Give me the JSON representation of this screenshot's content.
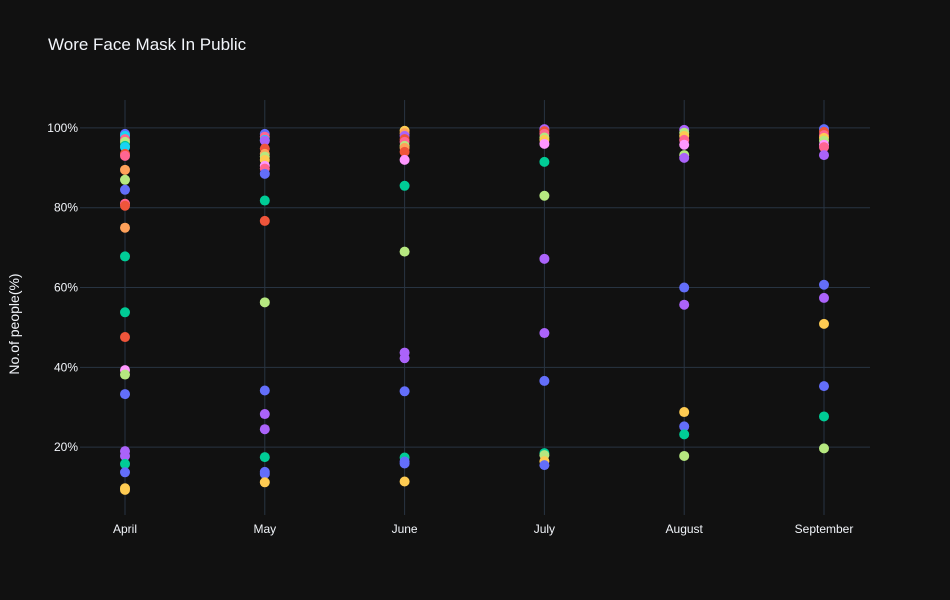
{
  "chart_data": {
    "type": "scatter",
    "title": "Wore Face Mask In Public",
    "xlabel": "",
    "ylabel": "No.of people(%)",
    "categories": [
      "April",
      "May",
      "June",
      "July",
      "August",
      "September"
    ],
    "ylim": [
      3,
      107
    ],
    "yticks": [
      20,
      40,
      60,
      80,
      100
    ],
    "ytick_labels": [
      "20%",
      "40%",
      "60%",
      "80%",
      "100%"
    ],
    "grid": true,
    "legend": "none",
    "points": [
      {
        "x": "April",
        "y": 98.5,
        "color": "#636efa"
      },
      {
        "x": "April",
        "y": 98.0,
        "color": "#19d3f3"
      },
      {
        "x": "April",
        "y": 97.2,
        "color": "#ff6692"
      },
      {
        "x": "April",
        "y": 96.5,
        "color": "#b6e880"
      },
      {
        "x": "April",
        "y": 95.5,
        "color": "#00cc96"
      },
      {
        "x": "April",
        "y": 95.2,
        "color": "#19d3f3"
      },
      {
        "x": "April",
        "y": 93.5,
        "color": "#ef553b"
      },
      {
        "x": "April",
        "y": 93.0,
        "color": "#ff6692"
      },
      {
        "x": "April",
        "y": 89.5,
        "color": "#ffa15a"
      },
      {
        "x": "April",
        "y": 87.0,
        "color": "#b6e880"
      },
      {
        "x": "April",
        "y": 84.5,
        "color": "#636efa"
      },
      {
        "x": "April",
        "y": 81.0,
        "color": "#ff6692"
      },
      {
        "x": "April",
        "y": 80.5,
        "color": "#ef553b"
      },
      {
        "x": "April",
        "y": 75.0,
        "color": "#ffa15a"
      },
      {
        "x": "April",
        "y": 67.8,
        "color": "#00cc96"
      },
      {
        "x": "April",
        "y": 53.8,
        "color": "#00cc96"
      },
      {
        "x": "April",
        "y": 47.6,
        "color": "#ef553b"
      },
      {
        "x": "April",
        "y": 39.3,
        "color": "#ff97ff"
      },
      {
        "x": "April",
        "y": 38.2,
        "color": "#b6e880"
      },
      {
        "x": "April",
        "y": 33.3,
        "color": "#636efa"
      },
      {
        "x": "April",
        "y": 19.0,
        "color": "#ab63fa"
      },
      {
        "x": "April",
        "y": 17.8,
        "color": "#ab63fa"
      },
      {
        "x": "April",
        "y": 15.8,
        "color": "#00cc96"
      },
      {
        "x": "April",
        "y": 13.7,
        "color": "#636efa"
      },
      {
        "x": "April",
        "y": 9.7,
        "color": "#fecb52"
      },
      {
        "x": "April",
        "y": 9.3,
        "color": "#fecb52"
      },
      {
        "x": "May",
        "y": 98.5,
        "color": "#636efa"
      },
      {
        "x": "May",
        "y": 97.8,
        "color": "#ff6692"
      },
      {
        "x": "May",
        "y": 97.0,
        "color": "#19d3f3"
      },
      {
        "x": "May",
        "y": 96.8,
        "color": "#ab63fa"
      },
      {
        "x": "May",
        "y": 94.8,
        "color": "#ef553b"
      },
      {
        "x": "May",
        "y": 93.5,
        "color": "#ffa15a"
      },
      {
        "x": "May",
        "y": 92.8,
        "color": "#b6e880"
      },
      {
        "x": "May",
        "y": 92.0,
        "color": "#fecb52"
      },
      {
        "x": "May",
        "y": 90.5,
        "color": "#ff97ff"
      },
      {
        "x": "May",
        "y": 89.8,
        "color": "#ff6692"
      },
      {
        "x": "May",
        "y": 88.5,
        "color": "#636efa"
      },
      {
        "x": "May",
        "y": 81.8,
        "color": "#00cc96"
      },
      {
        "x": "May",
        "y": 76.7,
        "color": "#ef553b"
      },
      {
        "x": "May",
        "y": 56.3,
        "color": "#b6e880"
      },
      {
        "x": "May",
        "y": 34.2,
        "color": "#636efa"
      },
      {
        "x": "May",
        "y": 28.3,
        "color": "#ab63fa"
      },
      {
        "x": "May",
        "y": 24.5,
        "color": "#ab63fa"
      },
      {
        "x": "May",
        "y": 17.5,
        "color": "#00cc96"
      },
      {
        "x": "May",
        "y": 13.8,
        "color": "#636efa"
      },
      {
        "x": "May",
        "y": 13.3,
        "color": "#636efa"
      },
      {
        "x": "May",
        "y": 11.2,
        "color": "#fecb52"
      },
      {
        "x": "June",
        "y": 99.3,
        "color": "#fecb52"
      },
      {
        "x": "June",
        "y": 98.7,
        "color": "#ffa15a"
      },
      {
        "x": "June",
        "y": 98.0,
        "color": "#ab63fa"
      },
      {
        "x": "June",
        "y": 97.2,
        "color": "#ef553b"
      },
      {
        "x": "June",
        "y": 96.5,
        "color": "#ff6692"
      },
      {
        "x": "June",
        "y": 95.5,
        "color": "#b6e880"
      },
      {
        "x": "June",
        "y": 95.0,
        "color": "#ffa15a"
      },
      {
        "x": "June",
        "y": 94.0,
        "color": "#ef553b"
      },
      {
        "x": "June",
        "y": 92.0,
        "color": "#ff97ff"
      },
      {
        "x": "June",
        "y": 85.5,
        "color": "#00cc96"
      },
      {
        "x": "June",
        "y": 69.0,
        "color": "#b6e880"
      },
      {
        "x": "June",
        "y": 43.7,
        "color": "#ab63fa"
      },
      {
        "x": "June",
        "y": 42.3,
        "color": "#ab63fa"
      },
      {
        "x": "June",
        "y": 34.0,
        "color": "#636efa"
      },
      {
        "x": "June",
        "y": 17.4,
        "color": "#00cc96"
      },
      {
        "x": "June",
        "y": 16.4,
        "color": "#636efa"
      },
      {
        "x": "June",
        "y": 15.9,
        "color": "#636efa"
      },
      {
        "x": "June",
        "y": 11.4,
        "color": "#fecb52"
      },
      {
        "x": "July",
        "y": 99.7,
        "color": "#ab63fa"
      },
      {
        "x": "July",
        "y": 99.2,
        "color": "#ef553b"
      },
      {
        "x": "July",
        "y": 98.5,
        "color": "#ff6692"
      },
      {
        "x": "July",
        "y": 97.6,
        "color": "#b6e880"
      },
      {
        "x": "July",
        "y": 97.0,
        "color": "#fecb52"
      },
      {
        "x": "July",
        "y": 96.0,
        "color": "#ff97ff"
      },
      {
        "x": "July",
        "y": 91.5,
        "color": "#00cc96"
      },
      {
        "x": "July",
        "y": 83.0,
        "color": "#b6e880"
      },
      {
        "x": "July",
        "y": 67.2,
        "color": "#ab63fa"
      },
      {
        "x": "July",
        "y": 48.6,
        "color": "#ab63fa"
      },
      {
        "x": "July",
        "y": 36.6,
        "color": "#636efa"
      },
      {
        "x": "July",
        "y": 18.5,
        "color": "#00cc96"
      },
      {
        "x": "July",
        "y": 18.0,
        "color": "#b6e880"
      },
      {
        "x": "July",
        "y": 16.5,
        "color": "#fecb52"
      },
      {
        "x": "July",
        "y": 15.5,
        "color": "#636efa"
      },
      {
        "x": "August",
        "y": 99.5,
        "color": "#ab63fa"
      },
      {
        "x": "August",
        "y": 98.8,
        "color": "#b6e880"
      },
      {
        "x": "August",
        "y": 98.0,
        "color": "#fecb52"
      },
      {
        "x": "August",
        "y": 97.0,
        "color": "#ff6692"
      },
      {
        "x": "August",
        "y": 95.8,
        "color": "#ff97ff"
      },
      {
        "x": "August",
        "y": 93.2,
        "color": "#b6e880"
      },
      {
        "x": "August",
        "y": 92.5,
        "color": "#ab63fa"
      },
      {
        "x": "August",
        "y": 60.0,
        "color": "#636efa"
      },
      {
        "x": "August",
        "y": 55.7,
        "color": "#ab63fa"
      },
      {
        "x": "August",
        "y": 28.8,
        "color": "#fecb52"
      },
      {
        "x": "August",
        "y": 25.2,
        "color": "#636efa"
      },
      {
        "x": "August",
        "y": 23.2,
        "color": "#00cc96"
      },
      {
        "x": "August",
        "y": 17.8,
        "color": "#b6e880"
      },
      {
        "x": "September",
        "y": 99.7,
        "color": "#636efa"
      },
      {
        "x": "September",
        "y": 99.0,
        "color": "#ef553b"
      },
      {
        "x": "September",
        "y": 98.2,
        "color": "#ff6692"
      },
      {
        "x": "September",
        "y": 97.5,
        "color": "#fecb52"
      },
      {
        "x": "September",
        "y": 96.8,
        "color": "#b6e880"
      },
      {
        "x": "September",
        "y": 95.8,
        "color": "#ff97ff"
      },
      {
        "x": "September",
        "y": 95.2,
        "color": "#ff6692"
      },
      {
        "x": "September",
        "y": 93.2,
        "color": "#ab63fa"
      },
      {
        "x": "September",
        "y": 60.7,
        "color": "#636efa"
      },
      {
        "x": "September",
        "y": 57.4,
        "color": "#ab63fa"
      },
      {
        "x": "September",
        "y": 50.9,
        "color": "#fecb52"
      },
      {
        "x": "September",
        "y": 35.3,
        "color": "#636efa"
      },
      {
        "x": "September",
        "y": 27.7,
        "color": "#00cc96"
      },
      {
        "x": "September",
        "y": 19.7,
        "color": "#b6e880"
      }
    ]
  },
  "colors": {
    "background": "#111111",
    "grid": "#283442",
    "text": "#f2f5fa"
  }
}
